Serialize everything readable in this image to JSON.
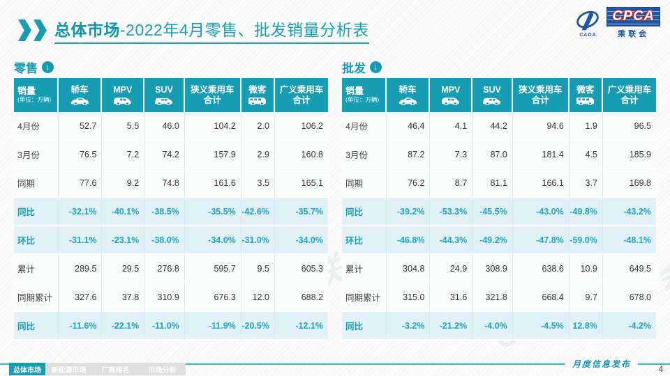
{
  "header": {
    "title_strong": "总体市场",
    "title_rest": "-2022年4月零售、批发销量分析表"
  },
  "logo": {
    "acronym": "CPCA",
    "chinese": "乘联会",
    "sub_mark": "CADA"
  },
  "watermark": "CPCA乘联会",
  "icons": {
    "section_arrow": "↓"
  },
  "table_meta": {
    "unit_label": "销量",
    "unit_sub": "(单位：万辆)"
  },
  "colors": {
    "accent_teal": "#169db3",
    "percent_text": "#1aa5cc",
    "tint_row": "#e2f1f7",
    "logo_blue": "#1c57a5",
    "logo_red": "#d21f26"
  },
  "footer": {
    "note": "月度信息发布",
    "page_number": "4",
    "tabs": [
      {
        "label": "总体市场",
        "active": true
      },
      {
        "label": "新能源市场",
        "active": false
      },
      {
        "label": "厂商排名",
        "active": false
      },
      {
        "label": "市场分析",
        "active": false
      }
    ]
  },
  "chart_data": [
    {
      "type": "table",
      "id": "retail",
      "title": "零售",
      "columns": [
        {
          "label": "轿车",
          "icon": "sedan-icon"
        },
        {
          "label": "MPV",
          "icon": "mpv-icon"
        },
        {
          "label": "SUV",
          "icon": "suv-icon"
        },
        {
          "label": "狭义乘用车",
          "label2": "合计"
        },
        {
          "label": "微客",
          "icon": "microvan-icon"
        },
        {
          "label": "广义乘用车",
          "label2": "合计"
        }
      ],
      "rows": [
        {
          "label": "4月份",
          "kind": "value",
          "values": [
            "52.7",
            "5.5",
            "46.0",
            "104.2",
            "2.0",
            "106.2"
          ]
        },
        {
          "label": "3月份",
          "kind": "value",
          "values": [
            "76.5",
            "7.2",
            "74.2",
            "157.9",
            "2.9",
            "160.8"
          ]
        },
        {
          "label": "同期",
          "kind": "value",
          "values": [
            "77.6",
            "9.2",
            "74.8",
            "161.6",
            "3.5",
            "165.1"
          ]
        },
        {
          "label": "同比",
          "kind": "percent",
          "values": [
            "-32.1%",
            "-40.1%",
            "-38.5%",
            "-35.5%",
            "-42.6%",
            "-35.7%"
          ]
        },
        {
          "label": "环比",
          "kind": "percent",
          "values": [
            "-31.1%",
            "-23.1%",
            "-38.0%",
            "-34.0%",
            "-31.0%",
            "-34.0%"
          ]
        },
        {
          "label": "累计",
          "kind": "value",
          "values": [
            "289.5",
            "29.5",
            "276.8",
            "595.7",
            "9.5",
            "605.3"
          ]
        },
        {
          "label": "同期累计",
          "kind": "value",
          "values": [
            "327.6",
            "37.8",
            "310.9",
            "676.3",
            "12.0",
            "688.2"
          ]
        },
        {
          "label": "同比",
          "kind": "percent",
          "values": [
            "-11.6%",
            "-22.1%",
            "-11.0%",
            "-11.9%",
            "-20.5%",
            "-12.1%"
          ]
        }
      ]
    },
    {
      "type": "table",
      "id": "wholesale",
      "title": "批发",
      "columns": [
        {
          "label": "轿车",
          "icon": "sedan-icon"
        },
        {
          "label": "MPV",
          "icon": "mpv-icon"
        },
        {
          "label": "SUV",
          "icon": "suv-icon"
        },
        {
          "label": "狭义乘用车",
          "label2": "合计"
        },
        {
          "label": "微客",
          "icon": "microvan-icon"
        },
        {
          "label": "广义乘用车",
          "label2": "合计"
        }
      ],
      "rows": [
        {
          "label": "4月份",
          "kind": "value",
          "values": [
            "46.4",
            "4.1",
            "44.2",
            "94.6",
            "1.9",
            "96.5"
          ]
        },
        {
          "label": "3月份",
          "kind": "value",
          "values": [
            "87.2",
            "7.3",
            "87.0",
            "181.4",
            "4.5",
            "185.9"
          ]
        },
        {
          "label": "同期",
          "kind": "value",
          "values": [
            "76.2",
            "8.7",
            "81.1",
            "166.1",
            "3.7",
            "169.8"
          ]
        },
        {
          "label": "同比",
          "kind": "percent",
          "values": [
            "-39.2%",
            "-53.3%",
            "-45.5%",
            "-43.0%",
            "-49.8%",
            "-43.2%"
          ]
        },
        {
          "label": "环比",
          "kind": "percent",
          "values": [
            "-46.8%",
            "-44.3%",
            "-49.2%",
            "-47.8%",
            "-59.0%",
            "-48.1%"
          ]
        },
        {
          "label": "累计",
          "kind": "value",
          "values": [
            "304.8",
            "24.9",
            "308.9",
            "638.6",
            "10.9",
            "649.5"
          ]
        },
        {
          "label": "同期累计",
          "kind": "value",
          "values": [
            "315.0",
            "31.6",
            "321.8",
            "668.4",
            "9.7",
            "678.0"
          ]
        },
        {
          "label": "同比",
          "kind": "percent",
          "values": [
            "-3.2%",
            "-21.2%",
            "-4.0%",
            "-4.5%",
            "12.8%",
            "-4.2%"
          ]
        }
      ]
    }
  ]
}
